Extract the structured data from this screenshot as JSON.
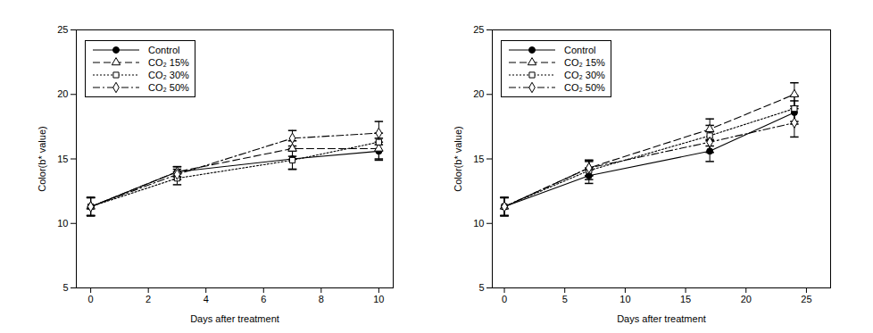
{
  "chart_data": [
    {
      "type": "line",
      "x": [
        0,
        3,
        7,
        10
      ],
      "xlim": [
        -0.5,
        10.5
      ],
      "xticks": [
        0,
        2,
        4,
        6,
        8,
        10
      ],
      "ylim": [
        5,
        25
      ],
      "yticks": [
        5,
        10,
        15,
        20,
        25
      ],
      "x_label": "Days after treatment",
      "y_label": "Color(b* value)",
      "legend": "top-left",
      "series": [
        {
          "name": "Control",
          "color": "#000000",
          "marker": "circle",
          "line_style": "solid",
          "values": [
            11.3,
            14.0,
            15.0,
            15.6
          ],
          "errors": [
            0.7,
            0.4,
            0.8,
            0.7
          ]
        },
        {
          "name": "CO₂ 15%",
          "color": "#000000",
          "marker": "triangle-open",
          "line_style": "dashed",
          "values": [
            11.3,
            14.0,
            15.8,
            15.8
          ],
          "errors": [
            0.7,
            0.4,
            0.6,
            0.8
          ]
        },
        {
          "name": "CO₂ 30%",
          "color": "#000000",
          "marker": "square-open",
          "line_style": "dotted",
          "values": [
            11.3,
            13.5,
            14.9,
            16.3
          ],
          "errors": [
            0.7,
            0.5,
            0.7,
            0.7
          ]
        },
        {
          "name": "CO₂ 50%",
          "color": "#000000",
          "marker": "diamond-open",
          "line_style": "dashdot",
          "values": [
            11.3,
            13.8,
            16.6,
            17.0
          ],
          "errors": [
            0.7,
            0.4,
            0.6,
            0.9
          ]
        }
      ]
    },
    {
      "type": "line",
      "x": [
        0,
        7,
        17,
        24
      ],
      "xlim": [
        -1,
        27
      ],
      "xticks": [
        0,
        5,
        10,
        15,
        20,
        25
      ],
      "ylim": [
        5,
        25
      ],
      "yticks": [
        5,
        10,
        15,
        20,
        25
      ],
      "x_label": "Days after treatment",
      "y_label": "Color(b* value)",
      "legend": "top-left",
      "series": [
        {
          "name": "Control",
          "color": "#000000",
          "marker": "circle",
          "line_style": "solid",
          "values": [
            11.3,
            13.7,
            15.6,
            18.6
          ],
          "errors": [
            0.7,
            0.6,
            0.8,
            0.9
          ]
        },
        {
          "name": "CO₂ 15%",
          "color": "#000000",
          "marker": "triangle-open",
          "line_style": "dashed",
          "values": [
            11.3,
            14.3,
            17.3,
            20.0
          ],
          "errors": [
            0.7,
            0.6,
            0.8,
            0.9
          ]
        },
        {
          "name": "CO₂ 30%",
          "color": "#000000",
          "marker": "square-open",
          "line_style": "dotted",
          "values": [
            11.3,
            14.1,
            16.8,
            18.9
          ],
          "errors": [
            0.7,
            0.7,
            0.8,
            1.0
          ]
        },
        {
          "name": "CO₂ 50%",
          "color": "#000000",
          "marker": "diamond-open",
          "line_style": "dashdot",
          "values": [
            11.3,
            14.3,
            16.3,
            17.8
          ],
          "errors": [
            0.7,
            0.6,
            0.8,
            1.1
          ]
        }
      ]
    }
  ]
}
